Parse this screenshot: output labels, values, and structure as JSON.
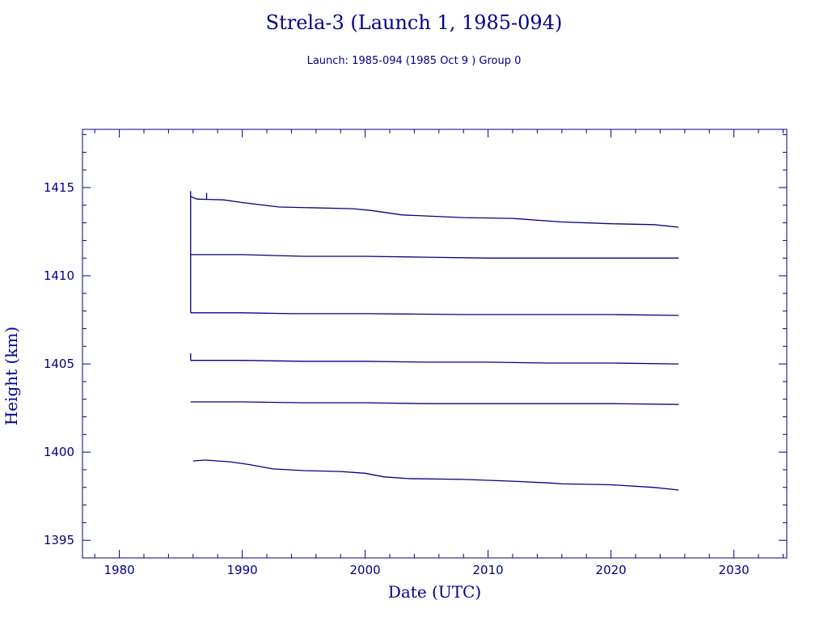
{
  "title": "Strela-3 (Launch 1, 1985-094)",
  "subtitle": "Launch: 1985-094  (1985 Oct  9 )  Group 0",
  "colors": {
    "ink": "#00008b",
    "background": "#ffffff"
  },
  "chart_data": {
    "type": "line",
    "title": "Strela-3 (Launch 1, 1985-094)",
    "subtitle": "Launch: 1985-094  (1985 Oct  9 )  Group 0",
    "xlabel": "Date (UTC)",
    "ylabel": "Height (km)",
    "xlim": [
      1977,
      2034.3
    ],
    "ylim": [
      1394,
      1418.3
    ],
    "x_ticks": [
      1980,
      1990,
      2000,
      2010,
      2020,
      2030
    ],
    "y_ticks": [
      1395,
      1400,
      1405,
      1410,
      1415
    ],
    "grid": false,
    "legend": "none",
    "series": [
      {
        "x": [
          1985.8,
          1986.3,
          1988.5,
          1990,
          1993,
          1999,
          2000.5,
          2003,
          2008,
          2012,
          2016,
          2020,
          2023.5,
          2025.5
        ],
        "y": [
          1414.5,
          1414.35,
          1414.3,
          1414.15,
          1413.9,
          1413.8,
          1413.7,
          1413.45,
          1413.3,
          1413.25,
          1413.05,
          1412.95,
          1412.9,
          1412.75
        ]
      },
      {
        "x": [
          1985.8,
          1990,
          1995,
          2000,
          2005,
          2010,
          2020,
          2025.5
        ],
        "y": [
          1411.2,
          1411.2,
          1411.1,
          1411.1,
          1411.05,
          1411.0,
          1411.0,
          1411.0
        ]
      },
      {
        "x": [
          1985.8,
          1990,
          1994,
          2000,
          2008,
          2015,
          2020,
          2025.5
        ],
        "y": [
          1407.9,
          1407.9,
          1407.85,
          1407.85,
          1407.8,
          1407.8,
          1407.8,
          1407.75
        ]
      },
      {
        "x": [
          1985.8,
          1990,
          1995,
          2000,
          2005,
          2010,
          2015,
          2020,
          2025.5
        ],
        "y": [
          1405.2,
          1405.2,
          1405.15,
          1405.15,
          1405.1,
          1405.1,
          1405.05,
          1405.05,
          1405.0
        ]
      },
      {
        "x": [
          1985.8,
          1990,
          1995,
          2000,
          2005,
          2010,
          2015,
          2020,
          2025.5
        ],
        "y": [
          1402.85,
          1402.85,
          1402.8,
          1402.8,
          1402.75,
          1402.75,
          1402.75,
          1402.75,
          1402.7
        ]
      },
      {
        "x": [
          1986,
          1987,
          1989,
          1990.5,
          1992.5,
          1995,
          1998,
          2000,
          2001.5,
          2003.5,
          2008,
          2012,
          2015,
          2016,
          2020,
          2023.5,
          2025.5
        ],
        "y": [
          1399.5,
          1399.55,
          1399.45,
          1399.3,
          1399.05,
          1398.95,
          1398.9,
          1398.8,
          1398.6,
          1398.5,
          1398.45,
          1398.35,
          1398.25,
          1398.2,
          1398.15,
          1398.0,
          1397.85
        ]
      }
    ],
    "vertical_segments": [
      {
        "x": 1985.8,
        "y1": 1407.9,
        "y2": 1414.8
      },
      {
        "x": 1985.8,
        "y1": 1405.2,
        "y2": 1405.6
      },
      {
        "x": 1987.1,
        "y1": 1414.35,
        "y2": 1414.7
      }
    ]
  }
}
